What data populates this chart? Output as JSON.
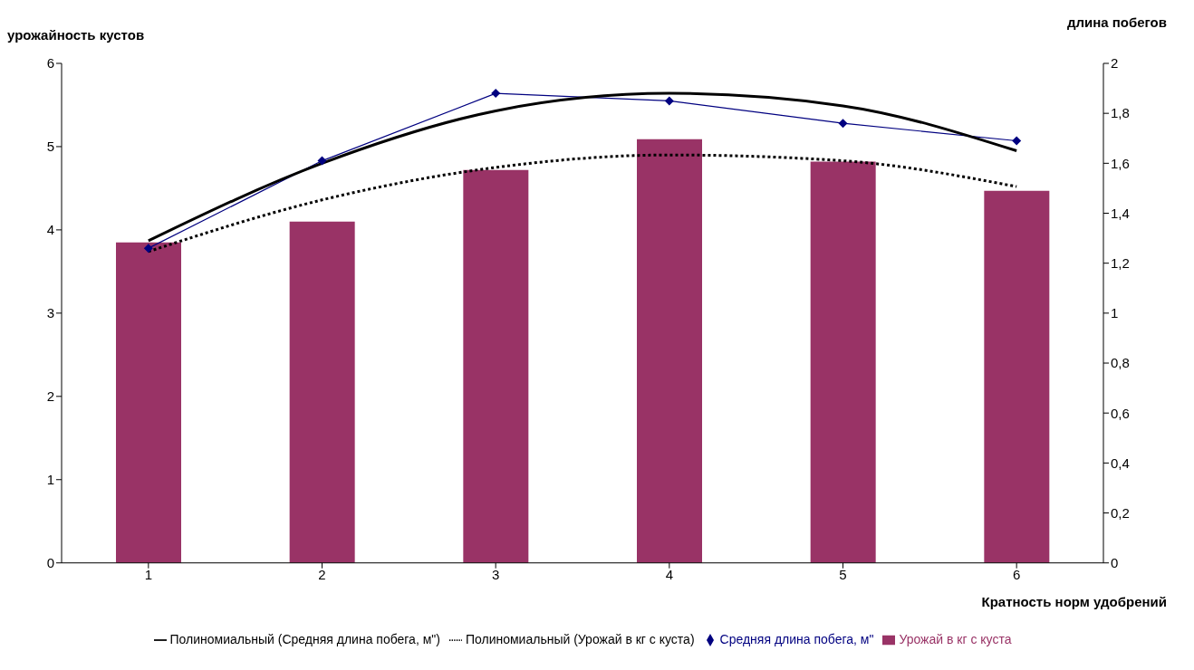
{
  "chart_data": {
    "type": "bar",
    "xlabel": "Кратность норм удобрений",
    "ylabel": "урожайность кустов",
    "y2label": "длина побегов",
    "categories": [
      "1",
      "2",
      "3",
      "4",
      "5",
      "6"
    ],
    "series": [
      {
        "name": "Урожай в кг с куста",
        "color": "#993366",
        "values": [
          3.85,
          4.1,
          4.72,
          5.09,
          4.82,
          4.47
        ]
      },
      {
        "name": "Средняя длина побега, м\"",
        "type": "line",
        "axis": "y2",
        "color": "#000080",
        "marker": "diamond",
        "line_style": "solid",
        "values": [
          1.26,
          1.61,
          1.88,
          1.85,
          1.76,
          1.69
        ]
      },
      {
        "name": "Полиномиальный (Урожай в кг с куста)",
        "type": "line",
        "color": "#000000",
        "marker": "none",
        "line_style": "dotted",
        "values": [
          3.74,
          4.36,
          4.75,
          4.9,
          4.83,
          4.52
        ]
      },
      {
        "name": "Полиномиальный (Средняя длина побега, м\")",
        "type": "line",
        "axis": "y2",
        "color": "#000000",
        "marker": "none",
        "line_style": "solid",
        "values": [
          1.29,
          1.6,
          1.81,
          1.88,
          1.83,
          1.65
        ]
      }
    ],
    "ylim": [
      0,
      6
    ],
    "yticks": [
      0,
      1,
      2,
      3,
      4,
      5,
      6
    ],
    "y2lim": [
      0,
      2
    ],
    "y2ticks": [
      0,
      {
        "value": 0.2,
        "label": "0,2"
      },
      {
        "value": 0.4,
        "label": "0,4"
      },
      {
        "value": 0.6,
        "label": "0,6"
      },
      {
        "value": 0.8,
        "label": "0,8"
      },
      1,
      {
        "value": 1.2,
        "label": "1,2"
      },
      {
        "value": 1.4,
        "label": "1,4"
      },
      {
        "value": 1.6,
        "label": "1,6"
      },
      {
        "value": 1.8,
        "label": "1,8"
      },
      2
    ],
    "grid": false,
    "legend": "bottom"
  }
}
